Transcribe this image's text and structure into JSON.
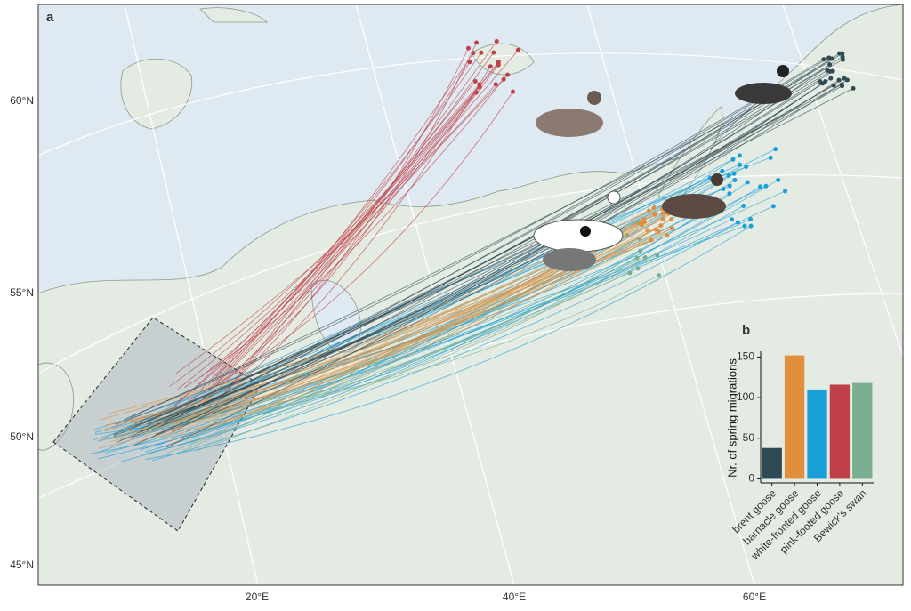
{
  "panels": {
    "a": "a",
    "b": "b"
  },
  "map": {
    "lat_ticks": [
      {
        "value": 60,
        "label": "60°N"
      },
      {
        "value": 55,
        "label": "55°N"
      },
      {
        "value": 50,
        "label": "50°N"
      },
      {
        "value": 45,
        "label": "45°N"
      }
    ],
    "lon_ticks": [
      {
        "value": 20,
        "label": "20°E"
      },
      {
        "value": 40,
        "label": "40°E"
      },
      {
        "value": 60,
        "label": "60°E"
      }
    ]
  },
  "chart_data": {
    "type": "bar",
    "ylabel": "Nr. of spring migrations",
    "categories": [
      "brent goose",
      "barnacle goose",
      "white-fronted goose",
      "pink-footed goose",
      "Bewick's swan"
    ],
    "values": [
      38,
      152,
      110,
      116,
      118
    ],
    "colors": [
      "#2f4a55",
      "#e08f3e",
      "#1aa0d8",
      "#bf4048",
      "#7aae90"
    ],
    "ylim": [
      -5,
      157
    ],
    "yticks": [
      0,
      50,
      100,
      150
    ]
  }
}
